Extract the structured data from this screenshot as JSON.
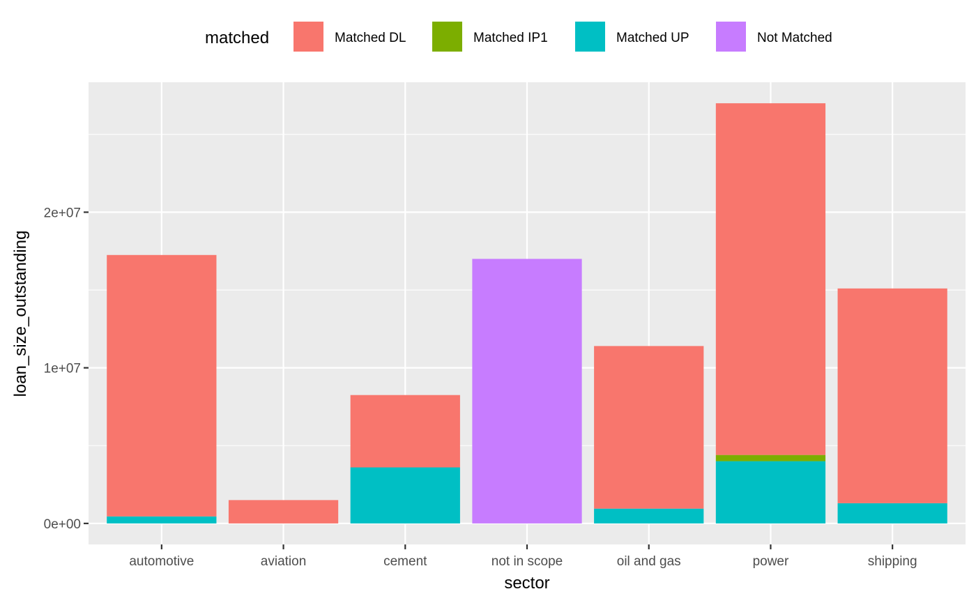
{
  "chart_data": {
    "type": "bar",
    "stacked": true,
    "xlabel": "sector",
    "ylabel": "loan_size_outstanding",
    "legend": {
      "title": "matched",
      "position": "top"
    },
    "categories": [
      "automotive",
      "aviation",
      "cement",
      "not in scope",
      "oil and gas",
      "power",
      "shipping"
    ],
    "series": [
      {
        "name": "Matched UP",
        "color": "#00BFC4",
        "values": [
          450000,
          0,
          3600000,
          0,
          950000,
          4000000,
          1300000
        ]
      },
      {
        "name": "Matched IP1",
        "color": "#7CAE00",
        "values": [
          0,
          0,
          0,
          0,
          0,
          400000,
          0
        ]
      },
      {
        "name": "Matched DL",
        "color": "#F8766D",
        "values": [
          16800000,
          1500000,
          4650000,
          0,
          10450000,
          22600000,
          13800000
        ]
      },
      {
        "name": "Not Matched",
        "color": "#C77CFF",
        "values": [
          0,
          0,
          0,
          17000000,
          0,
          0,
          0
        ]
      }
    ],
    "legend_order": [
      "Matched DL",
      "Matched IP1",
      "Matched UP",
      "Not Matched"
    ],
    "yticks": [
      0,
      10000000,
      20000000
    ],
    "ytick_labels": [
      "0e+00",
      "1e+07",
      "2e+07"
    ],
    "ylim": [
      -1350000,
      28350000
    ],
    "grid": true,
    "panel_background": "#EBEBEB"
  }
}
